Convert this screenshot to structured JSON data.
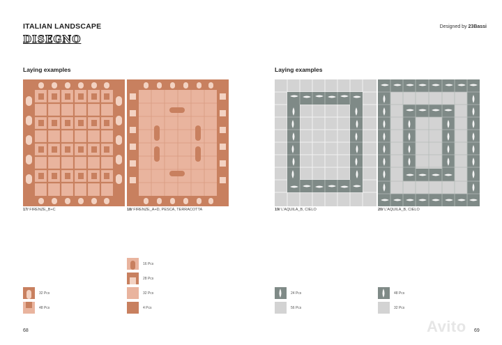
{
  "header": {
    "title": "ITALIAN LANDSCAPE",
    "logo_text": "DISEGNO",
    "designed_by_prefix": "Designed by",
    "designed_by_name": "23Bassi"
  },
  "sections": [
    {
      "title": "Laying examples"
    },
    {
      "title": "Laying examples"
    }
  ],
  "examples": [
    {
      "number": "17/",
      "name": "FIRENZE_B+C"
    },
    {
      "number": "18/",
      "name": "FIRENZE_A+D, PESCA, TERRACOTTA"
    },
    {
      "number": "19/",
      "name": "L'AQUILA_B, CIELO"
    },
    {
      "number": "20/",
      "name": "L'AQUILA_B, CIELO"
    }
  ],
  "tile_counts": {
    "ex17": [
      "32 Pcs",
      "48 Pcs"
    ],
    "ex18": [
      "16 Pcs",
      "28 Pcs",
      "32 Pcs",
      "4 Pcs"
    ],
    "ex19": [
      "24 Pcs",
      "56 Pcs"
    ],
    "ex20": [
      "48 Pcs",
      "32 Pcs"
    ]
  },
  "colors": {
    "terracotta": "#c8805f",
    "pesca": "#e9b49e",
    "cielo": "#d3d3d3",
    "gray": "#7f8a87",
    "grout_light": "#f2f2f2"
  },
  "footer": {
    "page_left": "68",
    "page_right": "69",
    "watermark": "Avito"
  }
}
